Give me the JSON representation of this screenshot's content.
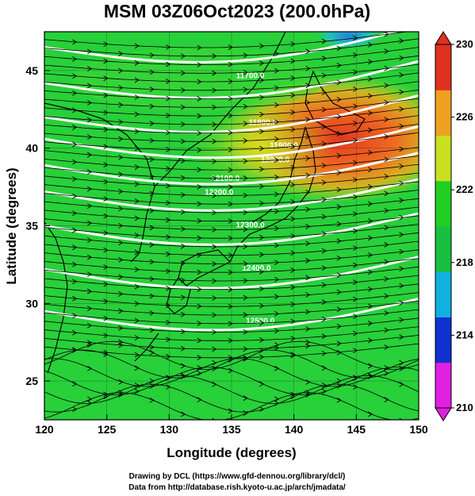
{
  "title": "MSM 03Z06Oct2023 (200.0hPa)",
  "xlabel": "Longitude (degrees)",
  "ylabel": "Latitude  (degrees)",
  "x_ticks": [
    "120",
    "125",
    "130",
    "135",
    "140",
    "145",
    "150"
  ],
  "y_ticks": [
    "25",
    "30",
    "35",
    "40",
    "45"
  ],
  "colorbar": {
    "ticks": [
      "210",
      "214",
      "218",
      "222",
      "226",
      "230"
    ],
    "colors": [
      "#e020e0",
      "#1030d0",
      "#10b0e0",
      "#18c040",
      "#20d020",
      "#c8e020",
      "#f0a020",
      "#e03020"
    ]
  },
  "contours": [
    {
      "label": "11700.0"
    },
    {
      "label": "11800.0"
    },
    {
      "label": "11900.0"
    },
    {
      "label": "12000.0"
    },
    {
      "label": "12100.0"
    },
    {
      "label": "12200.0"
    },
    {
      "label": "12300.0"
    },
    {
      "label": "12400.0"
    },
    {
      "label": "12500.0"
    }
  ],
  "credits": {
    "line1": "Drawing by DCL (https://www.gfd-dennou.org/library/dcl/)",
    "line2": "Data from http://database.rish.kyoto-u.ac.jp/arch/jmadata/"
  },
  "chart_data": {
    "type": "heatmap",
    "title": "MSM 03Z06Oct2023 (200.0hPa)",
    "xlabel": "Longitude (degrees)",
    "ylabel": "Latitude  (degrees)",
    "xlim": [
      120,
      150
    ],
    "ylim": [
      22.5,
      47.5
    ],
    "colorbar_range": [
      210,
      230
    ],
    "colorbar_ticks": [
      210,
      214,
      218,
      222,
      226,
      230
    ],
    "contour_levels": [
      11700,
      11800,
      11900,
      12000,
      12100,
      12200,
      12300,
      12400,
      12500
    ],
    "warm_region": {
      "lon": [
        134,
        150
      ],
      "lat": [
        38,
        45
      ],
      "value": 228
    },
    "cool_spot": {
      "lon": [
        141,
        143
      ],
      "lat": [
        46.5,
        47.5
      ],
      "value": 218
    },
    "background_value": 222
  }
}
